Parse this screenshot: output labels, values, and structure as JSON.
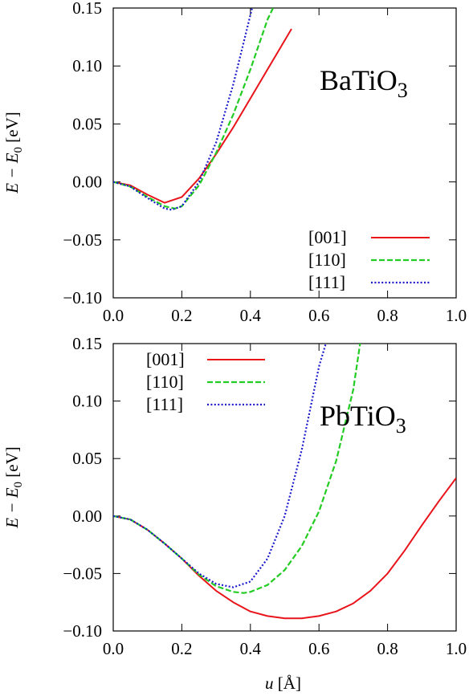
{
  "chart_data": [
    {
      "type": "line",
      "title": "",
      "annotation": {
        "base": "BaTiO",
        "sub": "3"
      },
      "xlabel": "",
      "ylabel": {
        "pre": "E − E",
        "sub": "0",
        "post": " [eV]"
      },
      "xlim": [
        0.0,
        1.0
      ],
      "ylim": [
        -0.1,
        0.15
      ],
      "xticks": [
        "0.0",
        "0.2",
        "0.4",
        "0.6",
        "0.8",
        "1.0"
      ],
      "yticks": [
        "0.15",
        "0.10",
        "0.05",
        "0.00",
        "−0.05",
        "−0.10"
      ],
      "legend_position": "bottom-right",
      "series": [
        {
          "name": "[001]",
          "color": "#e8141a",
          "dash": "solid",
          "x": [
            0.0,
            0.05,
            0.1,
            0.15,
            0.2,
            0.25,
            0.3,
            0.35,
            0.4,
            0.45,
            0.5,
            0.52
          ],
          "y": [
            0.0,
            -0.003,
            -0.011,
            -0.018,
            -0.013,
            0.003,
            0.024,
            0.047,
            0.072,
            0.097,
            0.122,
            0.132
          ]
        },
        {
          "name": "[110]",
          "color": "#22cc22",
          "dash": "dashed",
          "x": [
            0.0,
            0.05,
            0.1,
            0.15,
            0.18,
            0.2,
            0.25,
            0.3,
            0.35,
            0.4,
            0.45,
            0.466
          ],
          "y": [
            0.0,
            -0.004,
            -0.013,
            -0.021,
            -0.023,
            -0.021,
            -0.003,
            0.025,
            0.058,
            0.097,
            0.14,
            0.15
          ]
        },
        {
          "name": "[111]",
          "color": "#1a1acc",
          "dash": "dotted",
          "x": [
            0.0,
            0.05,
            0.1,
            0.15,
            0.17,
            0.2,
            0.25,
            0.3,
            0.35,
            0.38,
            0.405
          ],
          "y": [
            0.0,
            -0.004,
            -0.014,
            -0.023,
            -0.024,
            -0.021,
            0.0,
            0.034,
            0.084,
            0.12,
            0.15
          ]
        }
      ]
    },
    {
      "type": "line",
      "title": "",
      "annotation": {
        "base": "PbTiO",
        "sub": "3"
      },
      "xlabel": {
        "var": "u",
        "post": " [Å]"
      },
      "ylabel": {
        "pre": "E − E",
        "sub": "0",
        "post": " [eV]"
      },
      "xlim": [
        0.0,
        1.0
      ],
      "ylim": [
        -0.1,
        0.15
      ],
      "xticks": [
        "0.0",
        "0.2",
        "0.4",
        "0.6",
        "0.8",
        "1.0"
      ],
      "yticks": [
        "0.15",
        "0.10",
        "0.05",
        "0.00",
        "−0.05",
        "−0.10"
      ],
      "legend_position": "top-left",
      "series": [
        {
          "name": "[001]",
          "color": "#e8141a",
          "dash": "solid",
          "x": [
            0.0,
            0.05,
            0.1,
            0.15,
            0.2,
            0.25,
            0.3,
            0.35,
            0.4,
            0.45,
            0.5,
            0.55,
            0.6,
            0.65,
            0.7,
            0.75,
            0.8,
            0.85,
            0.9,
            0.95,
            1.0
          ],
          "y": [
            0.0,
            -0.003,
            -0.012,
            -0.024,
            -0.037,
            -0.052,
            -0.065,
            -0.075,
            -0.083,
            -0.087,
            -0.089,
            -0.089,
            -0.087,
            -0.083,
            -0.076,
            -0.065,
            -0.05,
            -0.03,
            -0.008,
            0.013,
            0.033
          ]
        },
        {
          "name": "[110]",
          "color": "#22cc22",
          "dash": "dashed",
          "x": [
            0.0,
            0.05,
            0.1,
            0.15,
            0.2,
            0.25,
            0.3,
            0.35,
            0.38,
            0.4,
            0.45,
            0.5,
            0.55,
            0.6,
            0.65,
            0.7,
            0.72
          ],
          "y": [
            0.0,
            -0.003,
            -0.012,
            -0.024,
            -0.037,
            -0.051,
            -0.061,
            -0.066,
            -0.067,
            -0.066,
            -0.06,
            -0.047,
            -0.026,
            0.004,
            0.048,
            0.11,
            0.15
          ]
        },
        {
          "name": "[111]",
          "color": "#1a1acc",
          "dash": "dotted",
          "x": [
            0.0,
            0.05,
            0.1,
            0.15,
            0.2,
            0.25,
            0.3,
            0.35,
            0.4,
            0.45,
            0.5,
            0.55,
            0.6,
            0.62
          ],
          "y": [
            0.0,
            -0.003,
            -0.012,
            -0.024,
            -0.037,
            -0.05,
            -0.059,
            -0.062,
            -0.057,
            -0.037,
            0.0,
            0.058,
            0.13,
            0.15
          ]
        }
      ]
    }
  ]
}
